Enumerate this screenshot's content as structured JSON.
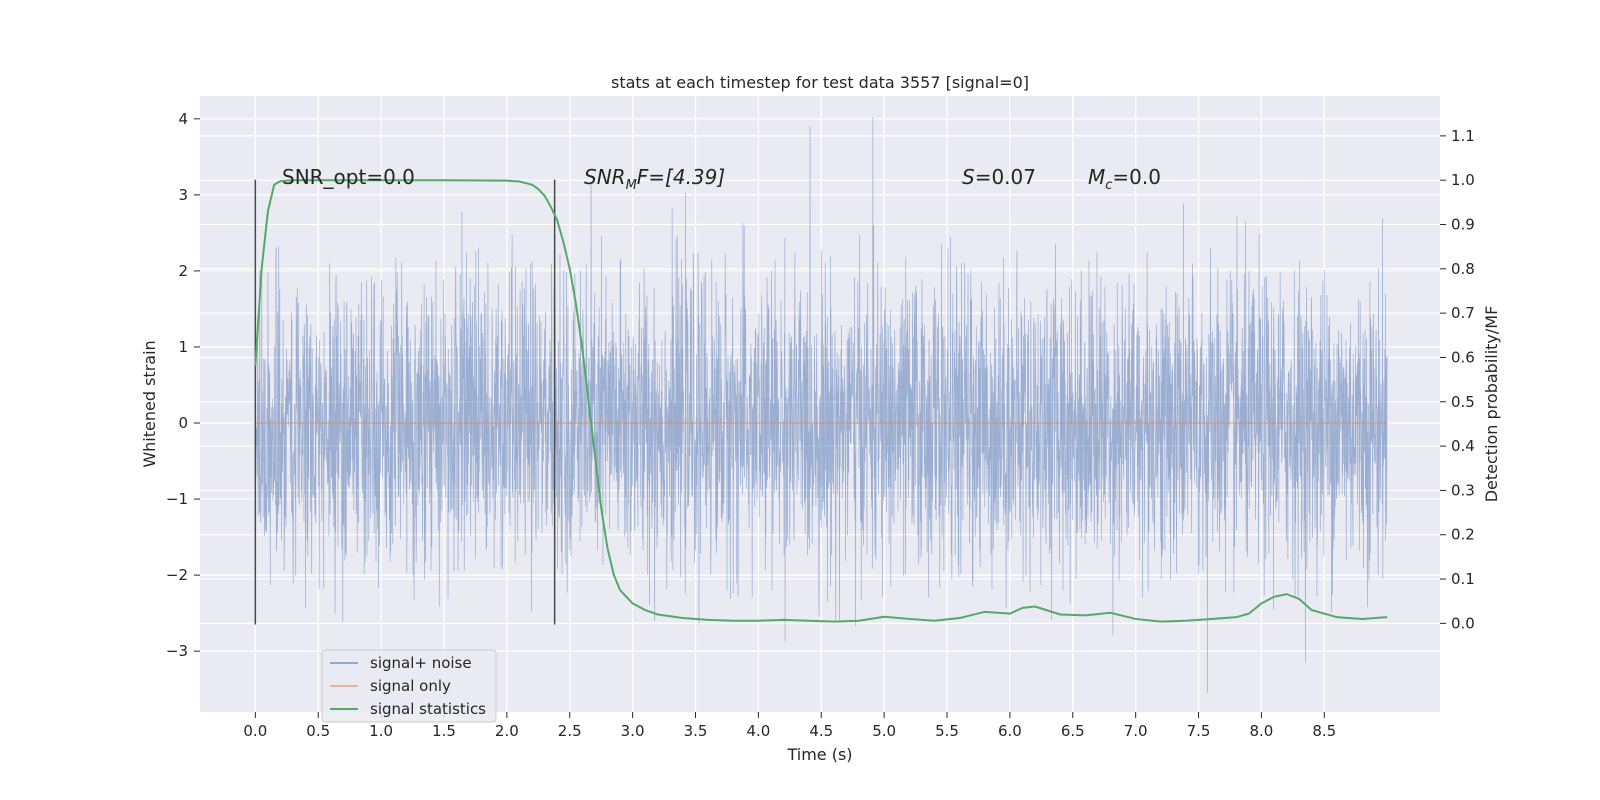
{
  "chart_data": {
    "type": "line",
    "title": "stats at each timestep for test data 3557 [signal=0]",
    "xlabel": "Time (s)",
    "ylabel": "Whitened strain",
    "ylabel_right": "Detection probability/MF",
    "xlim": [
      -0.44,
      9.42
    ],
    "ylim": [
      -3.8,
      4.3
    ],
    "ylim_right": [
      -0.2,
      1.19
    ],
    "x_ticks": [
      0.0,
      0.5,
      1.0,
      1.5,
      2.0,
      2.5,
      3.0,
      3.5,
      4.0,
      4.5,
      5.0,
      5.5,
      6.0,
      6.5,
      7.0,
      7.5,
      8.0,
      8.5
    ],
    "x_tick_labels": [
      "0.0",
      "0.5",
      "1.0",
      "1.5",
      "2.0",
      "2.5",
      "3.0",
      "3.5",
      "4.0",
      "4.5",
      "5.0",
      "5.5",
      "6.0",
      "6.5",
      "7.0",
      "7.5",
      "8.0",
      "8.5"
    ],
    "y_ticks": [
      -3,
      -2,
      -1,
      0,
      1,
      2,
      3,
      4
    ],
    "y_tick_labels": [
      "−3",
      "−2",
      "−1",
      "0",
      "1",
      "2",
      "3",
      "4"
    ],
    "y_right_ticks": [
      0.0,
      0.1,
      0.2,
      0.3,
      0.4,
      0.5,
      0.6,
      0.7,
      0.8,
      0.9,
      1.0,
      1.1
    ],
    "y_right_tick_labels": [
      "0.0",
      "0.1",
      "0.2",
      "0.3",
      "0.4",
      "0.5",
      "0.6",
      "0.7",
      "0.8",
      "0.9",
      "1.0",
      "1.1"
    ],
    "grid": true,
    "legend_placement": "lower-left",
    "annotations": {
      "snr_opt": "SNR_opt=0.0",
      "snr_mf_main": "SNR",
      "snr_mf_sub": "M",
      "snr_mf_rest": "F=[4.39]",
      "s_var": "S",
      "s_rest": "=0.07",
      "mc_var": "M",
      "mc_sub": "c",
      "mc_rest": "=0.0"
    },
    "vlines": [
      {
        "x": 0.0,
        "ymin": -2.65,
        "ymax": 3.2
      },
      {
        "x": 2.38,
        "ymin": -2.65,
        "ymax": 3.2
      }
    ],
    "series": [
      {
        "name": "signal+ noise",
        "color": "#4c72b0",
        "axis": "left",
        "kind": "noise",
        "x_range": [
          0.0,
          9.0
        ],
        "samples": 4400,
        "band": 1.45,
        "extremes": {
          "max": 4.02,
          "min": -3.55
        }
      },
      {
        "name": "signal only",
        "color": "#dd8452",
        "axis": "left",
        "x": [
          0.0,
          9.0
        ],
        "values": [
          0.0,
          0.0
        ]
      },
      {
        "name": "signal statistics",
        "color": "#55a868",
        "axis": "right",
        "x": [
          0.0,
          0.05,
          0.1,
          0.15,
          0.2,
          0.3,
          0.5,
          1.0,
          1.5,
          2.0,
          2.1,
          2.2,
          2.25,
          2.3,
          2.35,
          2.4,
          2.45,
          2.5,
          2.55,
          2.6,
          2.65,
          2.7,
          2.75,
          2.8,
          2.85,
          2.9,
          3.0,
          3.1,
          3.2,
          3.4,
          3.6,
          3.8,
          4.0,
          4.2,
          4.4,
          4.6,
          4.8,
          5.0,
          5.2,
          5.4,
          5.6,
          5.8,
          6.0,
          6.1,
          6.2,
          6.4,
          6.6,
          6.8,
          7.0,
          7.2,
          7.4,
          7.6,
          7.8,
          7.9,
          8.0,
          8.1,
          8.2,
          8.3,
          8.4,
          8.6,
          8.8,
          9.0
        ],
        "values": [
          0.58,
          0.8,
          0.93,
          0.99,
          0.998,
          1.0,
          1.0,
          1.0,
          1.0,
          0.999,
          0.997,
          0.99,
          0.98,
          0.965,
          0.94,
          0.91,
          0.86,
          0.8,
          0.72,
          0.62,
          0.5,
          0.38,
          0.26,
          0.17,
          0.11,
          0.075,
          0.045,
          0.03,
          0.02,
          0.012,
          0.008,
          0.006,
          0.006,
          0.008,
          0.006,
          0.004,
          0.006,
          0.015,
          0.01,
          0.006,
          0.012,
          0.026,
          0.022,
          0.035,
          0.038,
          0.02,
          0.018,
          0.024,
          0.01,
          0.004,
          0.006,
          0.01,
          0.014,
          0.022,
          0.045,
          0.06,
          0.066,
          0.055,
          0.03,
          0.014,
          0.01,
          0.014
        ]
      }
    ]
  }
}
